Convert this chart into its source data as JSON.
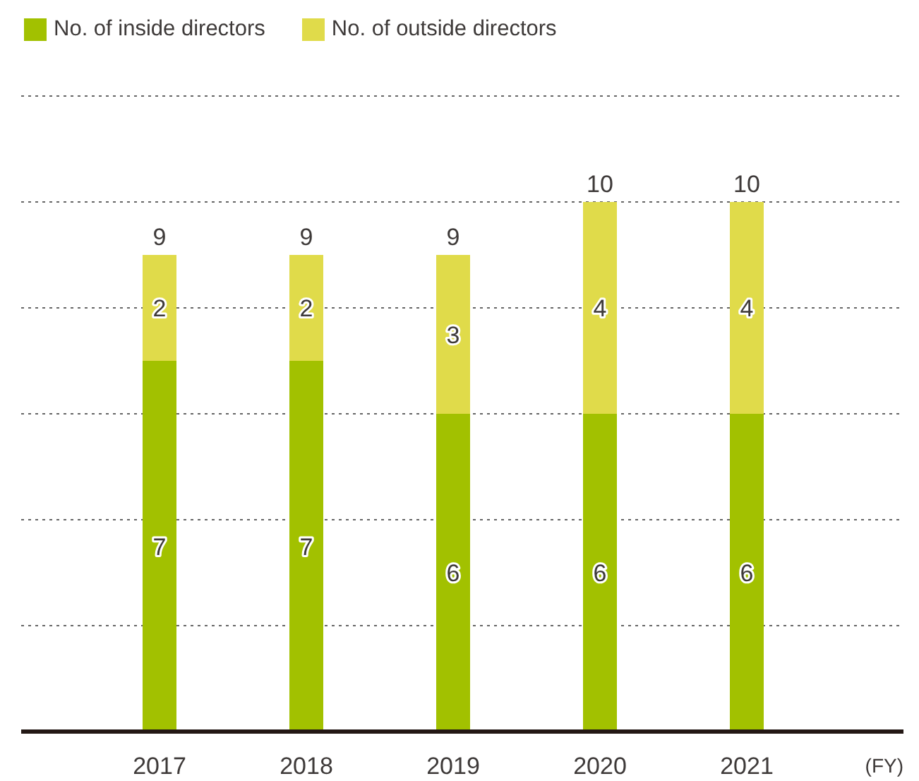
{
  "chart_data": {
    "type": "bar",
    "stacked": true,
    "categories": [
      "2017",
      "2018",
      "2019",
      "2020",
      "2021"
    ],
    "series": [
      {
        "name": "No. of inside directors",
        "color": "#a2c100",
        "values": [
          7,
          7,
          6,
          6,
          6
        ]
      },
      {
        "name": "No. of outside directors",
        "color": "#e0db4a",
        "values": [
          2,
          2,
          3,
          4,
          4
        ]
      }
    ],
    "totals": [
      "9",
      "9",
      "9",
      "10",
      "10"
    ],
    "data_labels": true,
    "xlabel": "(FY)",
    "grid": "y",
    "legend": "top left",
    "tick_labels": "x"
  }
}
